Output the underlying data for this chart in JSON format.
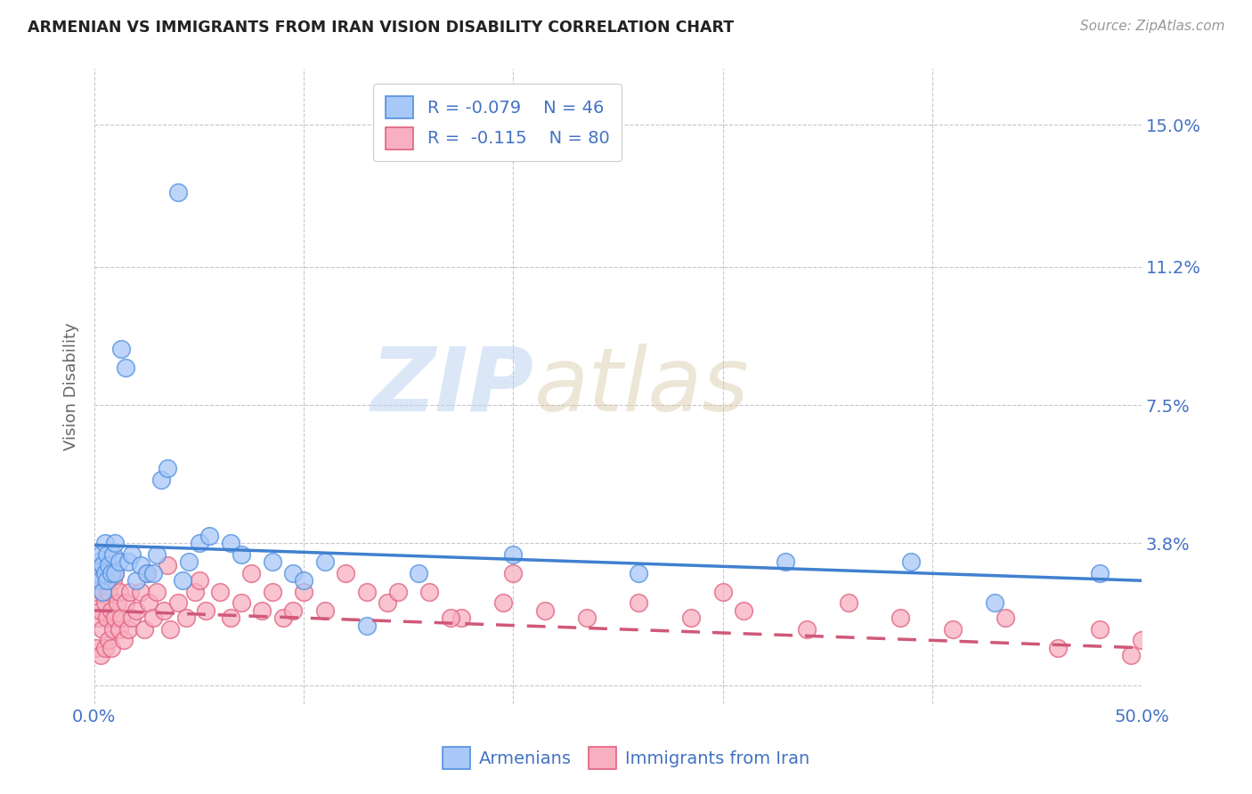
{
  "title": "ARMENIAN VS IMMIGRANTS FROM IRAN VISION DISABILITY CORRELATION CHART",
  "source": "Source: ZipAtlas.com",
  "ylabel": "Vision Disability",
  "xlim": [
    0.0,
    0.5
  ],
  "ylim": [
    -0.005,
    0.165
  ],
  "yticks": [
    0.0,
    0.038,
    0.075,
    0.112,
    0.15
  ],
  "ytick_labels": [
    "",
    "3.8%",
    "7.5%",
    "11.2%",
    "15.0%"
  ],
  "xticks": [
    0.0,
    0.1,
    0.2,
    0.3,
    0.4,
    0.5
  ],
  "xtick_labels": [
    "0.0%",
    "",
    "",
    "",
    "",
    "50.0%"
  ],
  "watermark_zip": "ZIP",
  "watermark_atlas": "atlas",
  "legend_r1": "-0.079",
  "legend_n1": "46",
  "legend_r2": "-0.115",
  "legend_n2": "80",
  "color_armenian_fill": "#a8c8f8",
  "color_armenian_edge": "#5090e0",
  "color_iran_fill": "#f8b0c0",
  "color_iran_edge": "#e06080",
  "color_armenian_line": "#4080d0",
  "color_iran_line": "#d05878",
  "background_color": "#ffffff",
  "grid_color": "#c8c8c8",
  "armenian_x": [
    0.001,
    0.002,
    0.003,
    0.003,
    0.004,
    0.004,
    0.005,
    0.005,
    0.006,
    0.006,
    0.007,
    0.008,
    0.009,
    0.01,
    0.01,
    0.012,
    0.013,
    0.015,
    0.016,
    0.018,
    0.02,
    0.022,
    0.025,
    0.028,
    0.03,
    0.032,
    0.035,
    0.04,
    0.042,
    0.045,
    0.05,
    0.055,
    0.065,
    0.07,
    0.085,
    0.095,
    0.1,
    0.11,
    0.13,
    0.155,
    0.2,
    0.26,
    0.33,
    0.39,
    0.43,
    0.48
  ],
  "armenian_y": [
    0.03,
    0.033,
    0.028,
    0.035,
    0.025,
    0.032,
    0.03,
    0.038,
    0.028,
    0.035,
    0.032,
    0.03,
    0.035,
    0.038,
    0.03,
    0.033,
    0.09,
    0.085,
    0.033,
    0.035,
    0.028,
    0.032,
    0.03,
    0.03,
    0.035,
    0.055,
    0.058,
    0.132,
    0.028,
    0.033,
    0.038,
    0.04,
    0.038,
    0.035,
    0.033,
    0.03,
    0.028,
    0.033,
    0.016,
    0.03,
    0.035,
    0.03,
    0.033,
    0.033,
    0.022,
    0.03
  ],
  "iran_x": [
    0.001,
    0.001,
    0.002,
    0.002,
    0.003,
    0.003,
    0.003,
    0.004,
    0.004,
    0.005,
    0.005,
    0.005,
    0.006,
    0.006,
    0.007,
    0.007,
    0.008,
    0.008,
    0.009,
    0.009,
    0.01,
    0.01,
    0.011,
    0.012,
    0.012,
    0.013,
    0.014,
    0.015,
    0.016,
    0.017,
    0.018,
    0.02,
    0.022,
    0.024,
    0.026,
    0.028,
    0.03,
    0.033,
    0.036,
    0.04,
    0.044,
    0.048,
    0.053,
    0.06,
    0.065,
    0.07,
    0.08,
    0.09,
    0.1,
    0.11,
    0.12,
    0.13,
    0.14,
    0.16,
    0.175,
    0.195,
    0.215,
    0.235,
    0.26,
    0.285,
    0.31,
    0.34,
    0.36,
    0.385,
    0.41,
    0.435,
    0.46,
    0.48,
    0.495,
    0.5,
    0.025,
    0.035,
    0.05,
    0.075,
    0.085,
    0.095,
    0.145,
    0.17,
    0.2,
    0.3
  ],
  "iran_y": [
    0.01,
    0.025,
    0.018,
    0.03,
    0.008,
    0.02,
    0.032,
    0.015,
    0.025,
    0.01,
    0.022,
    0.03,
    0.018,
    0.028,
    0.012,
    0.025,
    0.01,
    0.02,
    0.015,
    0.028,
    0.018,
    0.03,
    0.022,
    0.015,
    0.025,
    0.018,
    0.012,
    0.022,
    0.015,
    0.025,
    0.018,
    0.02,
    0.025,
    0.015,
    0.022,
    0.018,
    0.025,
    0.02,
    0.015,
    0.022,
    0.018,
    0.025,
    0.02,
    0.025,
    0.018,
    0.022,
    0.02,
    0.018,
    0.025,
    0.02,
    0.03,
    0.025,
    0.022,
    0.025,
    0.018,
    0.022,
    0.02,
    0.018,
    0.022,
    0.018,
    0.02,
    0.015,
    0.022,
    0.018,
    0.015,
    0.018,
    0.01,
    0.015,
    0.008,
    0.012,
    0.03,
    0.032,
    0.028,
    0.03,
    0.025,
    0.02,
    0.025,
    0.018,
    0.03,
    0.025
  ],
  "trend_arm_x0": 0.0,
  "trend_arm_y0": 0.0375,
  "trend_arm_x1": 0.5,
  "trend_arm_y1": 0.028,
  "trend_iran_x0": 0.0,
  "trend_iran_y0": 0.02,
  "trend_iran_x1": 0.5,
  "trend_iran_y1": 0.01
}
